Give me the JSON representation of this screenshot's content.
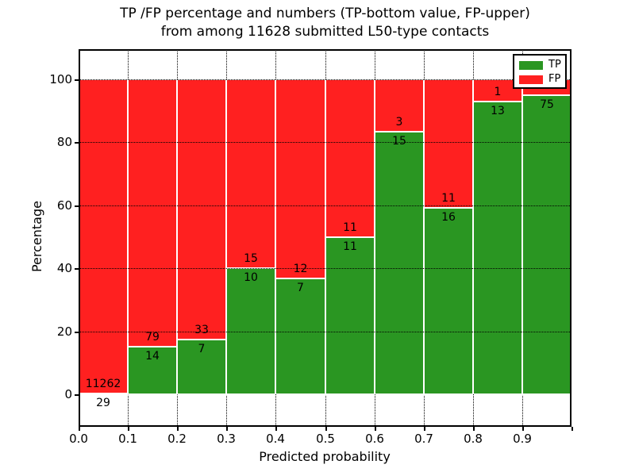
{
  "title": {
    "line1": "TP /FP percentage and numbers (TP-bottom value, FP-upper)",
    "line2": "from among 11628 submitted L50-type contacts"
  },
  "legend": {
    "position": "upper right",
    "items": [
      {
        "label": "TP",
        "color": "#2a9622"
      },
      {
        "label": "FP",
        "color": "#ff2020"
      }
    ]
  },
  "colors": {
    "tp": "#2a9622",
    "fp": "#ff2020",
    "grid": "#000000",
    "background": "#ffffff"
  },
  "chart_data": {
    "type": "bar",
    "stacked": true,
    "unit": "percent",
    "title": "TP /FP percentage and numbers (TP-bottom value, FP-upper) from among 11628 submitted L50-type contacts",
    "xlabel": "Predicted probability",
    "ylabel": "Percentage",
    "categories": [
      "0.0-0.1",
      "0.1-0.2",
      "0.2-0.3",
      "0.3-0.4",
      "0.4-0.5",
      "0.5-0.6",
      "0.6-0.7",
      "0.7-0.8",
      "0.8-0.9",
      "0.9-1.0"
    ],
    "series": [
      {
        "name": "TP",
        "color": "#2a9622",
        "counts": [
          29,
          14,
          7,
          10,
          7,
          11,
          15,
          16,
          13,
          75
        ],
        "percent": [
          0.26,
          15.05,
          17.5,
          40.0,
          36.84,
          50.0,
          83.33,
          59.26,
          92.86,
          94.94
        ]
      },
      {
        "name": "FP",
        "color": "#ff2020",
        "counts": [
          11262,
          79,
          33,
          15,
          12,
          11,
          3,
          11,
          1,
          null
        ],
        "percent": [
          99.74,
          84.95,
          82.5,
          60.0,
          63.16,
          50.0,
          16.67,
          40.74,
          7.14,
          5.06
        ]
      }
    ],
    "bar_labels": {
      "tp": [
        "29",
        "14",
        "7",
        "10",
        "7",
        "11",
        "15",
        "16",
        "13",
        "75"
      ],
      "fp": [
        "11262",
        "79",
        "33",
        "15",
        "12",
        "11",
        "3",
        "11",
        "1",
        null
      ]
    },
    "x_tick_labels": [
      "0.0",
      "0.1",
      "0.2",
      "0.3",
      "0.4",
      "0.5",
      "0.6",
      "0.7",
      "0.8",
      "0.9"
    ],
    "y_tick_labels": [
      "0",
      "20",
      "40",
      "60",
      "80",
      "100"
    ],
    "y_tick_values": [
      0,
      20,
      40,
      60,
      80,
      100
    ],
    "xlim": [
      0.0,
      1.0
    ],
    "ylim": [
      0,
      100
    ],
    "grid": "dotted",
    "legend_position": "upper right"
  }
}
